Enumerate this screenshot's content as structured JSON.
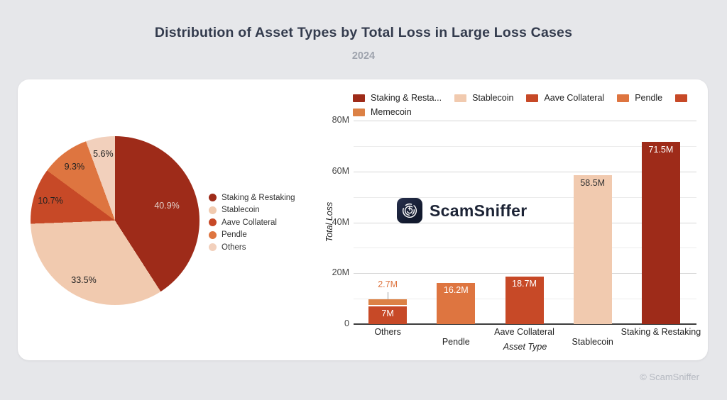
{
  "page": {
    "title": "Distribution of Asset Types by Total Loss in Large Loss Cases",
    "subtitle": "2024",
    "watermark": "© ScamSniffer",
    "background_color": "#e6e7ea",
    "title_color": "#333b4d",
    "subtitle_color": "#9ea3ad"
  },
  "logo": {
    "text": "ScamSniffer",
    "icon": "scamsniffer-radar-icon",
    "icon_color": "#18213a",
    "text_color": "#1c2335"
  },
  "chart_data": [
    {
      "type": "pie",
      "unit": "%",
      "labels": [
        "Staking & Restaking",
        "Stablecoin",
        "Aave Collateral",
        "Pendle",
        "Others"
      ],
      "values": [
        40.9,
        33.5,
        10.7,
        9.3,
        5.6
      ],
      "display_labels": [
        "40.9%",
        "33.5%",
        "10.7%",
        "9.3%",
        "5.6%"
      ],
      "colors": [
        "#9e2b19",
        "#f1caaf",
        "#c74927",
        "#de7540",
        "#f2d0bc"
      ],
      "slice_label_colors": [
        "#e3d0c9",
        "#212121",
        "#212121",
        "#212121",
        "#212121"
      ],
      "legend_position": "right",
      "start_angle_deg": 0,
      "direction": "clockwise"
    },
    {
      "type": "bar",
      "stacked": true,
      "xlabel": "Asset Type",
      "ylabel": "Total Loss",
      "value_unit": "M",
      "ylim": [
        0,
        80
      ],
      "yticks": [
        {
          "value": 0,
          "label": "0"
        },
        {
          "value": 20,
          "label": "20M"
        },
        {
          "value": 40,
          "label": "40M"
        },
        {
          "value": 60,
          "label": "60M"
        },
        {
          "value": 80,
          "label": "80M"
        }
      ],
      "minor_gridline_step": 10,
      "categories": [
        "Others",
        "Pendle",
        "Aave Collateral",
        "Stablecoin",
        "Staking & Restaking"
      ],
      "bars": [
        {
          "category": "Others",
          "segments": [
            {
              "value_m": 7,
              "label": "7M",
              "color": "#c74927",
              "label_color": "#ffffff",
              "label_inside": true
            },
            {
              "value_m": 2.7,
              "label": "2.7M",
              "color": "#dc8145",
              "label_color": "#de7540",
              "label_inside": false
            }
          ]
        },
        {
          "category": "Pendle",
          "segments": [
            {
              "value_m": 16.2,
              "label": "16.2M",
              "color": "#de7540",
              "label_color": "#ffffff",
              "label_inside": true
            }
          ]
        },
        {
          "category": "Aave Collateral",
          "segments": [
            {
              "value_m": 18.7,
              "label": "18.7M",
              "color": "#c74927",
              "label_color": "#ffffff",
              "label_inside": true
            }
          ]
        },
        {
          "category": "Stablecoin",
          "segments": [
            {
              "value_m": 58.5,
              "label": "58.5M",
              "color": "#f1caaf",
              "label_color": "#333333",
              "label_inside": true
            }
          ]
        },
        {
          "category": "Staking & Restaking",
          "segments": [
            {
              "value_m": 71.5,
              "label": "71.5M",
              "color": "#9e2b19",
              "label_color": "#ffffff",
              "label_inside": true
            }
          ]
        }
      ],
      "legend": [
        {
          "label": "Staking & Resta...",
          "color": "#9e2b19"
        },
        {
          "label": "Stablecoin",
          "color": "#f1caaf"
        },
        {
          "label": "Aave Collateral",
          "color": "#c74927"
        },
        {
          "label": "Pendle",
          "color": "#de7540"
        },
        {
          "label": "",
          "color": "#c74927"
        },
        {
          "label": "Memecoin",
          "color": "#dc8145"
        }
      ]
    }
  ]
}
